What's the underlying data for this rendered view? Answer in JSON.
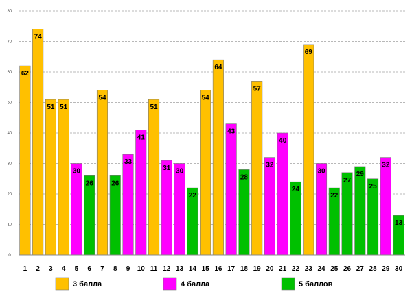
{
  "chart_data": {
    "type": "bar",
    "title": "",
    "xlabel": "",
    "ylabel": "",
    "ylim": [
      0,
      80
    ],
    "yticks": [
      0,
      10,
      20,
      30,
      40,
      50,
      60,
      70,
      80
    ],
    "grid": true,
    "categories": [
      "1",
      "2",
      "3",
      "4",
      "5",
      "6",
      "7",
      "8",
      "9",
      "10",
      "11",
      "12",
      "13",
      "14",
      "15",
      "16",
      "17",
      "18",
      "19",
      "20",
      "21",
      "22",
      "23",
      "24",
      "25",
      "26",
      "27",
      "28",
      "29",
      "30"
    ],
    "values": [
      62,
      74,
      51,
      51,
      30,
      26,
      54,
      26,
      33,
      41,
      51,
      31,
      30,
      22,
      54,
      64,
      43,
      28,
      57,
      32,
      40,
      24,
      69,
      30,
      22,
      27,
      29,
      25,
      32,
      13
    ],
    "groups": [
      0,
      0,
      0,
      0,
      1,
      2,
      0,
      2,
      1,
      1,
      0,
      1,
      1,
      2,
      0,
      0,
      1,
      2,
      0,
      1,
      1,
      2,
      0,
      1,
      2,
      2,
      2,
      2,
      1,
      2
    ],
    "series": [
      {
        "name": "3 балла",
        "color": "#FFC000"
      },
      {
        "name": "4 балла",
        "color": "#FF00FF"
      },
      {
        "name": "5 баллов",
        "color": "#00C000"
      }
    ],
    "legend_position": "bottom"
  }
}
